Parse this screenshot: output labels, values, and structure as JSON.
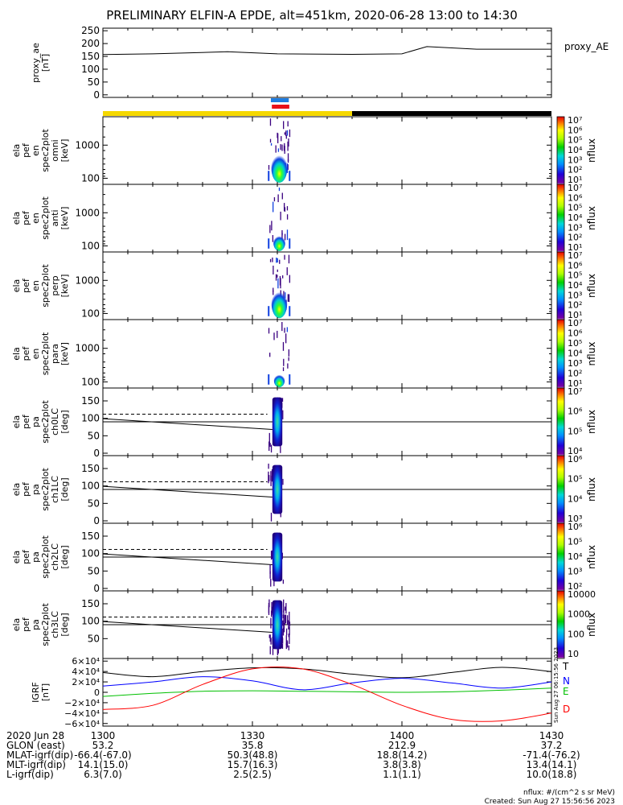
{
  "title": "PRELIMINARY ELFIN-A EPDE, alt=451km, 2020-06-28 13:00 to 14:30",
  "colors": {
    "science_bar": "#f5d800",
    "shadow_bar": "#000000",
    "bar_blue": "#1e7ce0",
    "bar_red": "#e8101a",
    "grf_x": "#000000",
    "grf_y": "#0000ff",
    "grf_z": "#00c000",
    "grf_d": "#ff0000"
  },
  "chart_data": [
    {
      "type": "line",
      "panel": "proxy_ae",
      "ylabel_lines": [
        "proxy_ae",
        "[nT]"
      ],
      "legend": "proxy_AE",
      "ylim": [
        -10,
        260
      ],
      "ytick_labels": [
        "250",
        "200",
        "150",
        "100",
        "50",
        "0"
      ],
      "x_minutes": [
        0,
        10,
        25,
        35,
        50,
        60,
        65,
        75,
        90
      ],
      "values": [
        157,
        160,
        168,
        160,
        158,
        160,
        188,
        178,
        178
      ]
    },
    {
      "type": "heatmap",
      "panel": "en_spec_omni",
      "ylabel_lines": [
        "ela",
        "pef",
        "en",
        "spec2plot",
        "omni",
        "[keV]"
      ],
      "yscale": "log",
      "ytick_labels": [
        "1000",
        "100"
      ],
      "colorbar": {
        "label": "nflux",
        "tick_labels": [
          "10⁷",
          "10⁶",
          "10⁵",
          "10⁴",
          "10³",
          "10²",
          "10¹"
        ]
      }
    },
    {
      "type": "heatmap",
      "panel": "en_spec_anti",
      "ylabel_lines": [
        "ela",
        "pef",
        "en",
        "spec2plot",
        "anti",
        "[keV]"
      ],
      "yscale": "log",
      "ytick_labels": [
        "1000",
        "100"
      ],
      "colorbar": {
        "label": "nflux",
        "tick_labels": [
          "10⁷",
          "10⁶",
          "10⁵",
          "10⁴",
          "10³",
          "10²",
          "10¹"
        ]
      }
    },
    {
      "type": "heatmap",
      "panel": "en_spec_perp",
      "ylabel_lines": [
        "ela",
        "pef",
        "en",
        "spec2plot",
        "perp",
        "[keV]"
      ],
      "yscale": "log",
      "ytick_labels": [
        "1000",
        "100"
      ],
      "colorbar": {
        "label": "nflux",
        "tick_labels": [
          "10⁷",
          "10⁶",
          "10⁵",
          "10⁴",
          "10³",
          "10²",
          "10¹"
        ]
      }
    },
    {
      "type": "heatmap",
      "panel": "en_spec_para",
      "ylabel_lines": [
        "ela",
        "pef",
        "en",
        "spec2plot",
        "para",
        "[keV]"
      ],
      "yscale": "log",
      "ytick_labels": [
        "1000",
        "100"
      ],
      "colorbar": {
        "label": "nflux",
        "tick_labels": [
          "10⁷",
          "10⁶",
          "10⁵",
          "10⁴",
          "10³",
          "10²",
          "10¹"
        ]
      }
    },
    {
      "type": "heatmap",
      "panel": "pa_spec_ch0LC",
      "ylabel_lines": [
        "ela",
        "pef",
        "pa",
        "spec2plot",
        "ch0LC",
        "[deg]"
      ],
      "ytick_labels": [
        "150",
        "100",
        "50",
        "0"
      ],
      "colorbar": {
        "label": "nflux",
        "tick_labels": [
          "10⁷",
          "10⁶",
          "10⁵",
          "10⁴"
        ]
      }
    },
    {
      "type": "heatmap",
      "panel": "pa_spec_ch1LC",
      "ylabel_lines": [
        "ela",
        "pef",
        "pa",
        "spec2plot",
        "ch1LC",
        "[deg]"
      ],
      "ytick_labels": [
        "150",
        "100",
        "50",
        "0"
      ],
      "colorbar": {
        "label": "nflux",
        "tick_labels": [
          "10⁶",
          "10⁵",
          "10⁴",
          "10³"
        ]
      }
    },
    {
      "type": "heatmap",
      "panel": "pa_spec_ch2LC",
      "ylabel_lines": [
        "ela",
        "pef",
        "pa",
        "spec2plot",
        "ch2LC",
        "[deg]"
      ],
      "ytick_labels": [
        "150",
        "100",
        "50",
        "0"
      ],
      "colorbar": {
        "label": "nflux",
        "tick_labels": [
          "10⁶",
          "10⁵",
          "10⁴",
          "10³",
          "10²"
        ]
      }
    },
    {
      "type": "heatmap",
      "panel": "pa_spec_ch3LC",
      "ylabel_lines": [
        "ela",
        "pef",
        "pa",
        "spec2plot",
        "ch3LC",
        "[deg]"
      ],
      "ytick_labels": [
        "150",
        "100",
        "50"
      ],
      "colorbar": {
        "label": "nflux",
        "tick_labels": [
          "10000",
          "1000",
          "100",
          "10"
        ]
      }
    },
    {
      "type": "line",
      "panel": "igrf",
      "ylabel_lines": [
        "IGRF",
        "[nT]"
      ],
      "ylim": [
        -65000,
        65000
      ],
      "ytick_labels": [
        "6×10⁴",
        "4×10⁴",
        "2×10⁴",
        "0",
        "−2×10⁴",
        "−4×10⁴",
        "−6×10⁴"
      ],
      "legend": [
        "T",
        "N",
        "E",
        "D"
      ],
      "x_minutes": [
        0,
        10,
        20,
        30,
        40,
        50,
        60,
        70,
        80,
        90
      ],
      "series": [
        {
          "name": "T",
          "values": [
            38000,
            30000,
            40000,
            47000,
            45000,
            35000,
            28000,
            38000,
            48000,
            40000
          ]
        },
        {
          "name": "N",
          "values": [
            12000,
            20000,
            30000,
            22000,
            5000,
            18000,
            27000,
            18000,
            8000,
            20000
          ]
        },
        {
          "name": "E",
          "values": [
            -8000,
            -2000,
            2000,
            3000,
            2000,
            1000,
            0,
            1000,
            4000,
            8000
          ]
        },
        {
          "name": "D",
          "values": [
            -33000,
            -25000,
            15000,
            45000,
            45000,
            15000,
            -25000,
            -52000,
            -55000,
            -40000
          ]
        }
      ],
      "rotated_note": "Sun Aug 27 06:15:56 2023"
    }
  ],
  "x_axis": {
    "tick_labels": [
      "1300",
      "1330",
      "1400",
      "1430"
    ],
    "rows": [
      {
        "label": "2020 Jun 28",
        "values": [
          "",
          "",
          "",
          ""
        ]
      },
      {
        "label": "GLON (east)",
        "values": [
          "53.2",
          "35.8",
          "212.9",
          "37.2"
        ]
      },
      {
        "label": "MLAT-igrf(dip)",
        "values": [
          "-66.4(-67.0)",
          "50.3(48.8)",
          "18.8(14.2)",
          "-71.4(-76.2)"
        ]
      },
      {
        "label": "MLT-igrf(dip)",
        "values": [
          "14.1(15.0)",
          "15.7(16.3)",
          "3.8(3.8)",
          "13.4(14.1)"
        ]
      },
      {
        "label": "L-igrf(dip)",
        "values": [
          "6.3(7.0)",
          "2.5(2.5)",
          "1.1(1.1)",
          "10.0(18.8)"
        ]
      }
    ]
  },
  "footer": {
    "units": "nflux: #/(cm^2 s sr MeV)",
    "created": "Created: Sun Aug 27 15:56:56 2023"
  }
}
